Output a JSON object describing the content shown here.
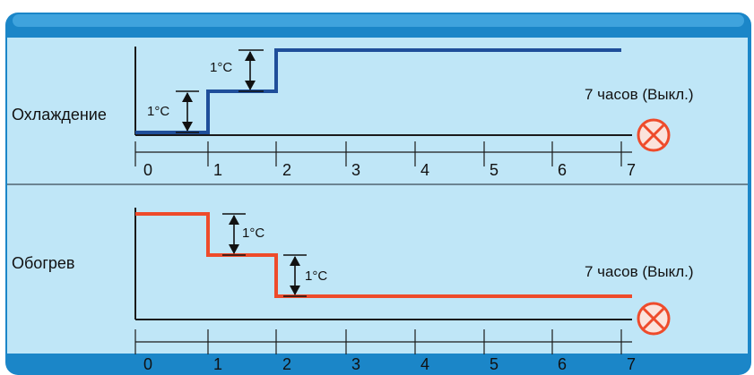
{
  "colors": {
    "frame": "#1b86c8",
    "panel": "#bfe6f7",
    "cooling_line": "#1f4e9a",
    "heating_line": "#ee4b2b",
    "stop_icon": "#ee4b2b",
    "axis": "#1a1a1a"
  },
  "cooling": {
    "title": "Охлаждение",
    "step_label_1": "1°C",
    "step_label_2": "1°C",
    "off_label": "7 часов (Выкл.)",
    "stop_icon": "stop-circle-x-icon",
    "ticks": [
      "0",
      "1",
      "2",
      "3",
      "4",
      "5",
      "6",
      "7"
    ]
  },
  "heating": {
    "title": "Обогрев",
    "step_label_1": "1°C",
    "step_label_2": "1°C",
    "off_label": "7 часов (Выкл.)",
    "stop_icon": "stop-circle-x-icon",
    "ticks": [
      "0",
      "1",
      "2",
      "3",
      "4",
      "5",
      "6",
      "7"
    ]
  }
}
